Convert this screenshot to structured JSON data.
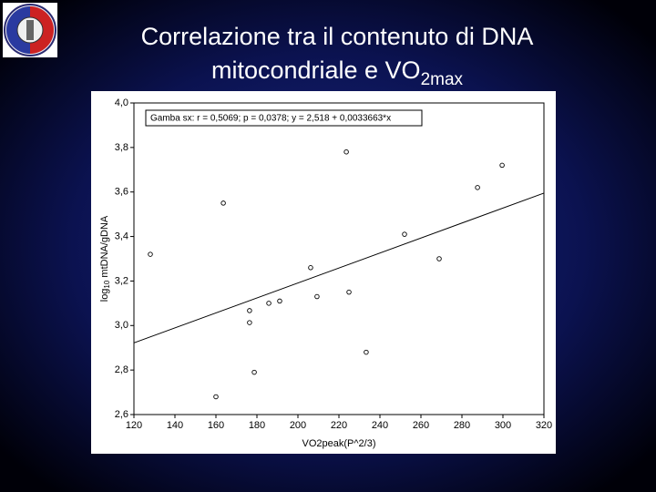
{
  "chart_data": {
    "type": "scatter",
    "title": [
      "Correlazione tra il contenuto di DNA",
      "mitocondriale e VO",
      "2max"
    ],
    "x_label": "VO2peak(P^2/3)",
    "y_label": [
      "log",
      "10",
      " mtDNA/gDNA"
    ],
    "annotation": "Gamba sx: r = 0,5069; p = 0,0378;  y = 2,518 + 0,0033663*x",
    "xlim": [
      120,
      320
    ],
    "xticks": [
      120,
      140,
      160,
      180,
      200,
      220,
      240,
      260,
      280,
      300,
      320
    ],
    "ylim": [
      2.6,
      4.0
    ],
    "yticks": [
      {
        "value": 2.6,
        "label": "2,6"
      },
      {
        "value": 2.8,
        "label": "2,8"
      },
      {
        "value": 3.0,
        "label": "3,0"
      },
      {
        "value": 3.2,
        "label": "3,2"
      },
      {
        "value": 3.4,
        "label": "3,4"
      },
      {
        "value": 3.6,
        "label": "3,6"
      },
      {
        "value": 3.8,
        "label": "3,8"
      },
      {
        "value": 4.0,
        "label": "4,0"
      }
    ],
    "x": [
      128,
      163.6,
      176.4,
      176.4,
      178.7,
      160,
      185.8,
      191.1,
      206.2,
      209.3,
      223.6,
      224.9,
      233.3,
      252,
      268.9,
      287.6,
      299.6
    ],
    "values": [
      3.32,
      3.55,
      3.067,
      3.013,
      2.79,
      2.68,
      3.1,
      3.11,
      3.26,
      3.13,
      3.78,
      3.15,
      2.88,
      3.41,
      3.3,
      3.62,
      3.72
    ],
    "trendline": {
      "x": [
        120,
        320
      ],
      "values": [
        2.922,
        3.595
      ]
    },
    "color": "#000000"
  }
}
